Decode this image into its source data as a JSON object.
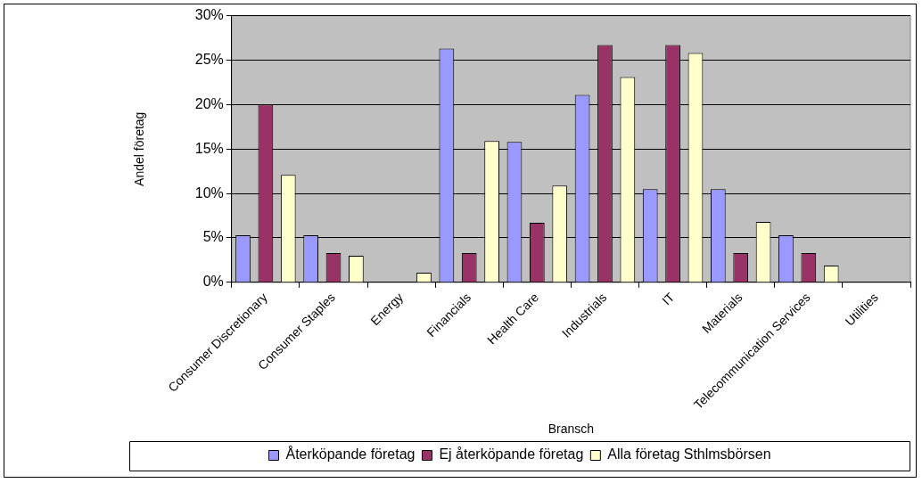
{
  "chart_data": {
    "type": "bar",
    "xlabel": "Bransch",
    "ylabel": "Andel företag",
    "categories": [
      "Consumer Discretionary",
      "Consumer Staples",
      "Energy",
      "Financials",
      "Health Care",
      "Industrials",
      "IT",
      "Materials",
      "Telecommunication Services",
      "Utilities"
    ],
    "series": [
      {
        "name": "Återköpande företag",
        "color": "#9999ff",
        "values": [
          5.3,
          5.3,
          0,
          26.3,
          15.8,
          21.1,
          10.5,
          10.5,
          5.3,
          0
        ]
      },
      {
        "name": "Ej återköpande företag",
        "color": "#993366",
        "values": [
          20,
          3.3,
          0,
          3.3,
          6.7,
          26.7,
          26.7,
          3.3,
          3.3,
          0
        ]
      },
      {
        "name": "Alla företag Sthlmsbörsen",
        "color": "#ffffcc",
        "values": [
          12.1,
          3.0,
          1.1,
          15.9,
          10.9,
          23.1,
          25.8,
          6.8,
          1.9,
          0
        ]
      }
    ],
    "ylim": [
      0,
      30
    ],
    "yticks": [
      {
        "value": 0,
        "label": "0%"
      },
      {
        "value": 5,
        "label": "5%"
      },
      {
        "value": 10,
        "label": "10%"
      },
      {
        "value": 15,
        "label": "15%"
      },
      {
        "value": 20,
        "label": "20%"
      },
      {
        "value": 25,
        "label": "25%"
      },
      {
        "value": 30,
        "label": "30%"
      }
    ],
    "grid": "y",
    "legend": "bottom"
  }
}
